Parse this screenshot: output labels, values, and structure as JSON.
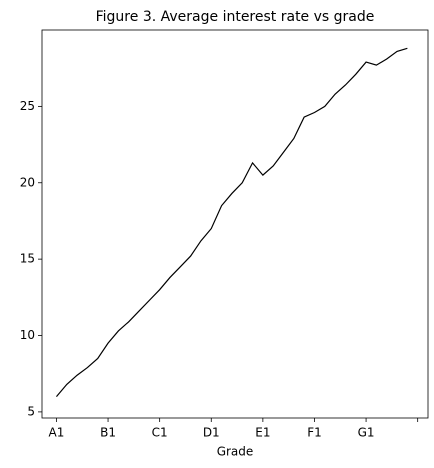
{
  "chart_data": {
    "type": "line",
    "title": "Figure 3. Average interest rate vs grade",
    "xlabel": "Grade",
    "categories": [
      "A1",
      null,
      null,
      null,
      null,
      "B1",
      null,
      null,
      null,
      null,
      "C1",
      null,
      null,
      null,
      null,
      "D1",
      null,
      null,
      null,
      null,
      "E1",
      null,
      null,
      null,
      null,
      "F1",
      null,
      null,
      null,
      null,
      "G1",
      null,
      null,
      null,
      null
    ],
    "series": [
      {
        "color": "#000000",
        "values": [
          6.0,
          6.8,
          7.4,
          7.9,
          8.5,
          9.5,
          10.3,
          10.9,
          11.6,
          12.3,
          13.0,
          13.8,
          14.5,
          15.2,
          16.2,
          17.0,
          18.5,
          19.3,
          20.0,
          21.3,
          20.5,
          21.1,
          22.0,
          22.9,
          24.3,
          24.6,
          25.0,
          25.8,
          26.4,
          27.1,
          27.9,
          27.7,
          28.1,
          28.6,
          28.8
        ]
      }
    ],
    "xlim": [
      -1.4,
      36.0
    ],
    "xticks": [
      0,
      5,
      10,
      15,
      20,
      25,
      30,
      35
    ],
    "ylim": [
      4.6,
      30.0
    ],
    "yticks": [
      5,
      10,
      15,
      20,
      25
    ]
  }
}
